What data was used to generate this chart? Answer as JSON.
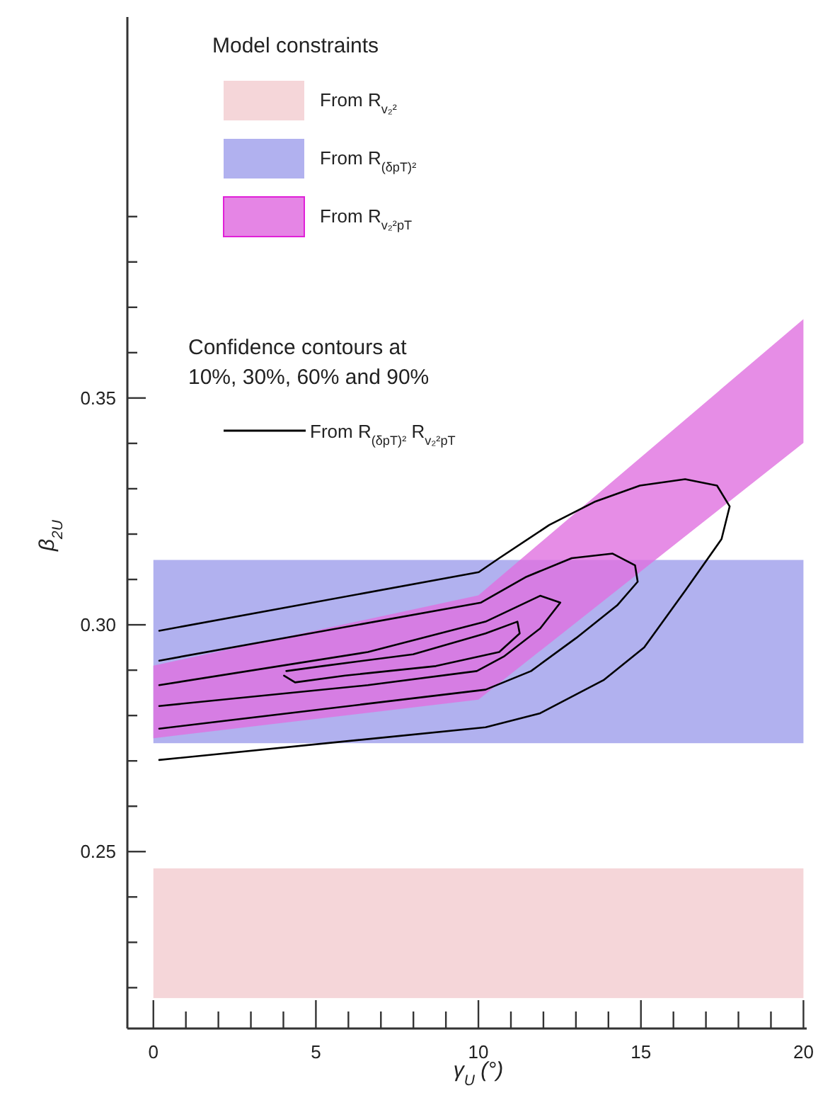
{
  "chart_data": {
    "type": "area",
    "xlabel": "γ$_{U}$ (°)",
    "ylabel": "β$_{2U}$",
    "legend_title": "Model constraints",
    "legend": "top left",
    "xlim": [
      -0.8,
      20.1
    ],
    "ylim": [
      0.211,
      0.434
    ],
    "xticks": [
      0,
      {
        "value": 1,
        "label": null
      },
      {
        "value": 2,
        "label": null
      },
      {
        "value": 3,
        "label": null
      },
      {
        "value": 4,
        "label": null
      },
      5,
      {
        "value": 6,
        "label": null
      },
      {
        "value": 7,
        "label": null
      },
      {
        "value": 8,
        "label": null
      },
      {
        "value": 9,
        "label": null
      },
      10,
      {
        "value": 11,
        "label": null
      },
      {
        "value": 12,
        "label": null
      },
      {
        "value": 13,
        "label": null
      },
      {
        "value": 14,
        "label": null
      },
      15,
      {
        "value": 16,
        "label": null
      },
      {
        "value": 17,
        "label": null
      },
      {
        "value": 18,
        "label": null
      },
      {
        "value": 19,
        "label": null
      },
      20
    ],
    "yticks": [
      {
        "value": 0.22,
        "label": null
      },
      {
        "value": 0.23,
        "label": null
      },
      {
        "value": 0.24,
        "label": null
      },
      0.25,
      {
        "value": 0.26,
        "label": null
      },
      {
        "value": 0.27,
        "label": null
      },
      {
        "value": 0.28,
        "label": null
      },
      {
        "value": 0.29,
        "label": null
      },
      {
        "value": 0.3,
        "label": "0.30"
      },
      {
        "value": 0.31,
        "label": null
      },
      {
        "value": 0.32,
        "label": null
      },
      {
        "value": 0.33,
        "label": null
      },
      {
        "value": 0.34,
        "label": null
      },
      0.35,
      {
        "value": 0.36,
        "label": null
      },
      {
        "value": 0.37,
        "label": null
      },
      {
        "value": 0.38,
        "label": null
      },
      {
        "value": 0.39,
        "label": null
      }
    ],
    "grid": false,
    "bands": [
      {
        "axis": "y",
        "from": 0.2177,
        "to": 0.2463,
        "label": "From R$_{v₂²}$",
        "color": "#f5d6d9"
      },
      {
        "axis": "y",
        "from": 0.2739,
        "to": 0.3143,
        "label": "From R$_{(δpT)²}$",
        "color": "#b1b1ef"
      }
    ],
    "series": [
      {
        "name": "From R$_{v₂²pT}$",
        "color": "#e070e0",
        "x": [
          0,
          10,
          20,
          20,
          10,
          0
        ],
        "values": [
          0.275,
          0.2835,
          0.3401,
          0.3674,
          0.3065,
          0.291
        ]
      },
      {
        "type": "line",
        "name": "From R$_{(δpT)²}$ R$_{v₂²pT}$",
        "color": "#000000",
        "line_style": "solid",
        "marker": "none",
        "x": [
          0.18,
          10.01,
          10.64,
          12.18,
          13.57,
          14.97,
          16.36,
          17.34,
          17.73,
          17.48,
          16.36,
          15.1,
          13.85,
          11.9,
          10.22,
          0.18
        ],
        "values": [
          0.2987,
          0.3116,
          0.3147,
          0.322,
          0.3271,
          0.3307,
          0.3321,
          0.3307,
          0.3261,
          0.3189,
          0.3075,
          0.295,
          0.2878,
          0.2805,
          0.2774,
          0.2702
        ]
      },
      {
        "type": "line",
        "color": "#000000",
        "line_style": "solid",
        "marker": "none",
        "x": [
          0.18,
          10.08,
          11.48,
          12.87,
          14.13,
          14.82,
          14.9,
          14.27,
          13.01,
          11.62,
          10.22,
          0.18
        ],
        "values": [
          0.2921,
          0.3049,
          0.3106,
          0.3147,
          0.3157,
          0.3131,
          0.3095,
          0.3043,
          0.2971,
          0.2898,
          0.2857,
          0.2771
        ]
      },
      {
        "type": "line",
        "color": "#000000",
        "line_style": "solid",
        "marker": "none",
        "x": [
          0.18,
          6.6,
          10.22,
          11.9,
          12.52,
          11.9,
          10.78,
          9.95,
          6.6,
          0.18
        ],
        "values": [
          0.2867,
          0.294,
          0.3007,
          0.3064,
          0.3049,
          0.2992,
          0.293,
          0.2898,
          0.2867,
          0.2821
        ]
      },
      {
        "type": "line",
        "color": "#000000",
        "line_style": "solid",
        "marker": "none",
        "x": [
          4.09,
          5.2,
          7.99,
          10.22,
          11.2,
          11.27,
          10.64,
          8.69,
          5.9,
          4.36,
          4.02
        ],
        "values": [
          0.2898,
          0.2909,
          0.2935,
          0.2981,
          0.3007,
          0.2981,
          0.294,
          0.2909,
          0.2888,
          0.2873,
          0.2888
        ]
      }
    ],
    "annotations": [
      "Confidence contours at 10%, 30%, 60% and 90%"
    ]
  }
}
